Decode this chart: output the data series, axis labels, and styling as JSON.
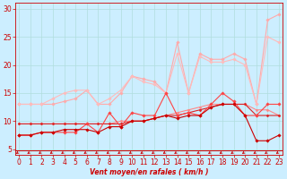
{
  "title": "",
  "xlabel": "Vent moyen/en rafales ( km/h )",
  "bg_color": "#cceeff",
  "grid_color": "#b0dddd",
  "x_ticks": [
    0,
    1,
    2,
    3,
    4,
    5,
    6,
    7,
    8,
    9,
    10,
    11,
    12,
    13,
    14,
    15,
    16,
    17,
    18,
    19,
    20,
    21,
    22,
    23
  ],
  "x_min": -0.3,
  "x_max": 23.3,
  "y_min": 4.0,
  "y_max": 31.0,
  "y_ticks": [
    5,
    10,
    15,
    20,
    25,
    30
  ],
  "lines": [
    {
      "color": "#ffaaaa",
      "linewidth": 0.8,
      "marker": "D",
      "markersize": 1.8,
      "y": [
        13,
        13,
        13,
        13,
        13.5,
        14,
        15.5,
        13,
        13,
        15,
        18,
        17.5,
        17,
        15,
        24,
        15,
        22,
        21,
        21,
        22,
        21,
        13,
        28,
        29
      ]
    },
    {
      "color": "#ffbbbb",
      "linewidth": 0.8,
      "marker": "D",
      "markersize": 1.8,
      "y": [
        13,
        13,
        13,
        14,
        15,
        15.5,
        15.5,
        13,
        14,
        15.5,
        18,
        17,
        16.5,
        15,
        22,
        15,
        21.5,
        20.5,
        20.5,
        21,
        20,
        13,
        25,
        24
      ]
    },
    {
      "color": "#ff8888",
      "linewidth": 0.8,
      "marker": "D",
      "markersize": 1.5,
      "y": [
        9.5,
        9.5,
        9.5,
        9.5,
        9.5,
        9.5,
        9.5,
        9.5,
        9.5,
        10,
        10,
        10,
        10.5,
        11,
        11.5,
        12,
        12.5,
        13,
        13,
        13,
        13,
        12,
        12,
        11
      ]
    },
    {
      "color": "#dd2222",
      "linewidth": 0.8,
      "marker": "D",
      "markersize": 1.5,
      "y": [
        9.5,
        9.5,
        9.5,
        9.5,
        9.5,
        9.5,
        9.5,
        9.5,
        9.5,
        9.5,
        10,
        10,
        10.5,
        11,
        11,
        11.5,
        12,
        12.5,
        13,
        13,
        13,
        11,
        11,
        11
      ]
    },
    {
      "color": "#ff4444",
      "linewidth": 0.8,
      "marker": "D",
      "markersize": 1.8,
      "y": [
        7.5,
        7.5,
        8,
        8,
        8,
        8,
        9.5,
        8,
        11.5,
        9,
        11.5,
        11,
        11,
        15,
        11,
        11.5,
        11,
        13,
        15,
        13.5,
        11,
        11,
        13,
        13
      ]
    },
    {
      "color": "#cc0000",
      "linewidth": 0.8,
      "marker": "D",
      "markersize": 1.8,
      "y": [
        7.5,
        7.5,
        8,
        8,
        8.5,
        8.5,
        8.5,
        8,
        9,
        9,
        10,
        10,
        10.5,
        11,
        10.5,
        11,
        11,
        12.5,
        13,
        13,
        11,
        6.5,
        6.5,
        7.5
      ]
    }
  ],
  "arrow_color": "#cc0000",
  "spine_color": "#cc0000",
  "tick_color": "#cc0000",
  "label_fontsize": 5.5,
  "xlabel_fontsize": 5.5
}
